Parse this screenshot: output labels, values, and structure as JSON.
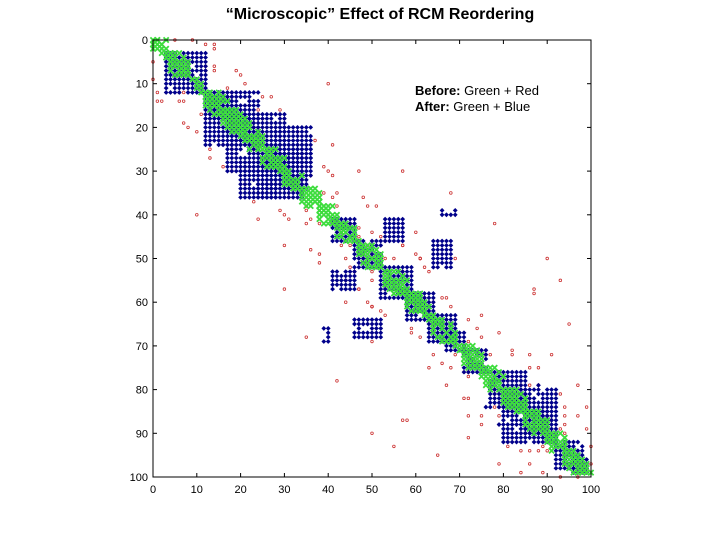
{
  "chart_data": {
    "type": "scatter",
    "title": "“Microscopic” Effect of RCM Reordering",
    "xlabel": "",
    "ylabel": "",
    "xlim": [
      0,
      100
    ],
    "ylim": [
      0,
      100
    ],
    "y_inverted": true,
    "x_ticks": [
      0,
      10,
      20,
      30,
      40,
      50,
      60,
      70,
      80,
      90,
      100
    ],
    "y_ticks": [
      0,
      10,
      20,
      30,
      40,
      50,
      60,
      70,
      80,
      90,
      100
    ],
    "grid": false,
    "legend": {
      "placement": "top-right",
      "lines": [
        {
          "key": "Before:",
          "text": " Green + Red"
        },
        {
          "key": "After:",
          "text": " Green + Blue"
        }
      ]
    },
    "series": [
      {
        "color": "#3ddc3d",
        "marker": "x",
        "description_blocks": [
          [
            0,
            3,
            0,
            3
          ],
          [
            3,
            8,
            3,
            8
          ],
          [
            12,
            17,
            12,
            17
          ],
          [
            16,
            22,
            16,
            22
          ],
          [
            20,
            25,
            20,
            25
          ],
          [
            25,
            30,
            25,
            30
          ],
          [
            30,
            34,
            30,
            34
          ],
          [
            34,
            38,
            34,
            38
          ],
          [
            38,
            42,
            38,
            42
          ],
          [
            42,
            46,
            42,
            46
          ],
          [
            47,
            52,
            47,
            52
          ],
          [
            53,
            58,
            53,
            58
          ],
          [
            58,
            63,
            58,
            63
          ],
          [
            64,
            69,
            64,
            69
          ],
          [
            70,
            75,
            70,
            75
          ],
          [
            75,
            80,
            75,
            80
          ],
          [
            80,
            85,
            80,
            85
          ],
          [
            85,
            90,
            85,
            90
          ],
          [
            90,
            94,
            90,
            94
          ],
          [
            94,
            99,
            94,
            99
          ]
        ],
        "diagonal": [
          0,
          100
        ]
      },
      {
        "color": "#00008b",
        "marker": "diamond",
        "blocks": [
          [
            3,
            12,
            3,
            12
          ],
          [
            13,
            24,
            12,
            18
          ],
          [
            12,
            18,
            13,
            24
          ],
          [
            17,
            24,
            18,
            30
          ],
          [
            18,
            30,
            17,
            24
          ],
          [
            24,
            34,
            26,
            36
          ],
          [
            26,
            36,
            24,
            34
          ],
          [
            20,
            28,
            28,
            36
          ],
          [
            28,
            36,
            20,
            28
          ],
          [
            41,
            46,
            41,
            46
          ],
          [
            46,
            52,
            46,
            52
          ],
          [
            41,
            46,
            53,
            57
          ],
          [
            53,
            57,
            41,
            46
          ],
          [
            46,
            52,
            64,
            68
          ],
          [
            64,
            68,
            46,
            52
          ],
          [
            52,
            59,
            52,
            59
          ],
          [
            58,
            64,
            58,
            64
          ],
          [
            63,
            69,
            63,
            69
          ],
          [
            65,
            69,
            40,
            40
          ],
          [
            40,
            40,
            65,
            69
          ],
          [
            67,
            71,
            67,
            71
          ],
          [
            71,
            76,
            71,
            76
          ],
          [
            80,
            92,
            80,
            92
          ],
          [
            76,
            84,
            77,
            85
          ],
          [
            85,
            90,
            85,
            90
          ],
          [
            92,
            98,
            92,
            98
          ],
          [
            96,
            99,
            96,
            99
          ]
        ],
        "singles": [
          [
            66,
            39
          ],
          [
            69,
            39
          ],
          [
            39,
            66
          ],
          [
            39,
            69
          ],
          [
            76,
            84
          ],
          [
            78,
            83
          ],
          [
            84,
            76
          ],
          [
            83,
            78
          ],
          [
            79,
            88
          ],
          [
            88,
            79
          ]
        ]
      },
      {
        "color": "#cc3333",
        "marker": "dot",
        "scattered_count": 330
      }
    ]
  }
}
